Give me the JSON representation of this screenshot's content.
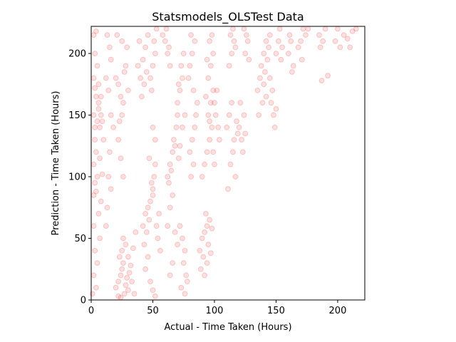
{
  "chart_data": {
    "type": "scatter",
    "title": "Statsmodels_OLSTest Data",
    "xlabel": "Actual - Time Taken (Hours)",
    "ylabel": "Prediction - Time Taken (Hours)",
    "xlim": [
      0,
      222
    ],
    "ylim": [
      0,
      222
    ],
    "xticks": [
      "0",
      "50",
      "100",
      "150",
      "200"
    ],
    "yticks": [
      "0",
      "50",
      "100",
      "150",
      "200"
    ],
    "grid": false,
    "marker": {
      "color": "#ff0000",
      "alpha": 0.12,
      "shape": "circle"
    },
    "series": [
      {
        "values_description_note": "",
        "points": [
          [
            2,
            180
          ],
          [
            3,
            172
          ],
          [
            4,
            165
          ],
          [
            2,
            150
          ],
          [
            5,
            145
          ],
          [
            3,
            140
          ],
          [
            6,
            155
          ],
          [
            4,
            120
          ],
          [
            2,
            110
          ],
          [
            3,
            95
          ],
          [
            4,
            88
          ],
          [
            2,
            85
          ],
          [
            5,
            100
          ],
          [
            3,
            130
          ],
          [
            6,
            160
          ],
          [
            8,
            150
          ],
          [
            7,
            140
          ],
          [
            5,
            190
          ],
          [
            3,
            200
          ],
          [
            2,
            60
          ],
          [
            3,
            40
          ],
          [
            2,
            20
          ],
          [
            4,
            10
          ],
          [
            1,
            5
          ],
          [
            6,
            175
          ],
          [
            8,
            165
          ],
          [
            9,
            145
          ],
          [
            10,
            130
          ],
          [
            7,
            115
          ],
          [
            9,
            102
          ],
          [
            8,
            80
          ],
          [
            6,
            70
          ],
          [
            5,
            30
          ],
          [
            7,
            50
          ],
          [
            2,
            215
          ],
          [
            4,
            218
          ],
          [
            12,
            180
          ],
          [
            14,
            170
          ],
          [
            16,
            150
          ],
          [
            18,
            140
          ],
          [
            15,
            120
          ],
          [
            14,
            100
          ],
          [
            16,
            90
          ],
          [
            13,
            75
          ],
          [
            12,
            60
          ],
          [
            15,
            205
          ],
          [
            16,
            195
          ],
          [
            13,
            215
          ],
          [
            20,
            10
          ],
          [
            22,
            15
          ],
          [
            24,
            20
          ],
          [
            25,
            25
          ],
          [
            27,
            5
          ],
          [
            28,
            12
          ],
          [
            26,
            30
          ],
          [
            23,
            35
          ],
          [
            25,
            40
          ],
          [
            22,
            3
          ],
          [
            30,
            8
          ],
          [
            29,
            18
          ],
          [
            31,
            22
          ],
          [
            24,
            2
          ],
          [
            26,
            50
          ],
          [
            28,
            45
          ],
          [
            30,
            35
          ],
          [
            32,
            28
          ],
          [
            33,
            15
          ],
          [
            35,
            5
          ],
          [
            34,
            42
          ],
          [
            36,
            55
          ],
          [
            20,
            180
          ],
          [
            22,
            175
          ],
          [
            24,
            165
          ],
          [
            26,
            160
          ],
          [
            25,
            150
          ],
          [
            23,
            145
          ],
          [
            27,
            185
          ],
          [
            28,
            190
          ],
          [
            21,
            215
          ],
          [
            25,
            210
          ],
          [
            29,
            205
          ],
          [
            30,
            170
          ],
          [
            22,
            130
          ],
          [
            24,
            115
          ],
          [
            26,
            100
          ],
          [
            40,
            180
          ],
          [
            42,
            195
          ],
          [
            44,
            205
          ],
          [
            46,
            215
          ],
          [
            41,
            165
          ],
          [
            38,
            190
          ],
          [
            43,
            175
          ],
          [
            45,
            185
          ],
          [
            39,
            210
          ],
          [
            42,
            60
          ],
          [
            44,
            70
          ],
          [
            46,
            75
          ],
          [
            48,
            80
          ],
          [
            50,
            85
          ],
          [
            47,
            65
          ],
          [
            45,
            55
          ],
          [
            43,
            45
          ],
          [
            49,
            95
          ],
          [
            51,
            100
          ],
          [
            52,
            110
          ],
          [
            50,
            90
          ],
          [
            46,
            35
          ],
          [
            44,
            25
          ],
          [
            48,
            15
          ],
          [
            50,
            8
          ],
          [
            52,
            3
          ],
          [
            53,
            60
          ],
          [
            55,
            70
          ],
          [
            54,
            50
          ],
          [
            56,
            40
          ],
          [
            47,
            115
          ],
          [
            48,
            180
          ],
          [
            50,
            190
          ],
          [
            52,
            200
          ],
          [
            49,
            170
          ],
          [
            51,
            210
          ],
          [
            53,
            220
          ],
          [
            50,
            140
          ],
          [
            52,
            130
          ],
          [
            60,
            210
          ],
          [
            62,
            200
          ],
          [
            64,
            190
          ],
          [
            58,
            215
          ],
          [
            63,
            205
          ],
          [
            61,
            220
          ],
          [
            62,
            100
          ],
          [
            64,
            110
          ],
          [
            66,
            120
          ],
          [
            68,
            125
          ],
          [
            65,
            105
          ],
          [
            63,
            95
          ],
          [
            67,
            130
          ],
          [
            69,
            140
          ],
          [
            70,
            150
          ],
          [
            71,
            115
          ],
          [
            72,
            125
          ],
          [
            66,
            85
          ],
          [
            64,
            75
          ],
          [
            62,
            60
          ],
          [
            68,
            55
          ],
          [
            70,
            45
          ],
          [
            66,
            30
          ],
          [
            64,
            20
          ],
          [
            70,
            160
          ],
          [
            72,
            170
          ],
          [
            74,
            180
          ],
          [
            73,
            190
          ],
          [
            75,
            200
          ],
          [
            71,
            175
          ],
          [
            76,
            150
          ],
          [
            74,
            140
          ],
          [
            72,
            60
          ],
          [
            74,
            50
          ],
          [
            76,
            40
          ],
          [
            75,
            30
          ],
          [
            77,
            20
          ],
          [
            73,
            10
          ],
          [
            78,
            15
          ],
          [
            76,
            5
          ],
          [
            80,
            190
          ],
          [
            82,
            200
          ],
          [
            84,
            210
          ],
          [
            81,
            215
          ],
          [
            79,
            180
          ],
          [
            83,
            170
          ],
          [
            80,
            120
          ],
          [
            82,
            130
          ],
          [
            84,
            140
          ],
          [
            83,
            110
          ],
          [
            81,
            100
          ],
          [
            85,
            150
          ],
          [
            86,
            160
          ],
          [
            88,
            40
          ],
          [
            90,
            50
          ],
          [
            92,
            55
          ],
          [
            94,
            60
          ],
          [
            96,
            65
          ],
          [
            93,
            70
          ],
          [
            95,
            45
          ],
          [
            97,
            38
          ],
          [
            91,
            35
          ],
          [
            89,
            25
          ],
          [
            92,
            20
          ],
          [
            94,
            30
          ],
          [
            98,
            58
          ],
          [
            90,
            100
          ],
          [
            92,
            110
          ],
          [
            94,
            120
          ],
          [
            96,
            130
          ],
          [
            98,
            140
          ],
          [
            95,
            150
          ],
          [
            97,
            160
          ],
          [
            93,
            165
          ],
          [
            99,
            170
          ],
          [
            96,
            145
          ],
          [
            95,
            180
          ],
          [
            97,
            190
          ],
          [
            99,
            200
          ],
          [
            96,
            210
          ],
          [
            98,
            215
          ],
          [
            94,
            195
          ],
          [
            100,
            160
          ],
          [
            102,
            170
          ],
          [
            101,
            150
          ],
          [
            103,
            140
          ],
          [
            104,
            130
          ],
          [
            99,
            120
          ],
          [
            100,
            110
          ],
          [
            110,
            140
          ],
          [
            112,
            150
          ],
          [
            114,
            160
          ],
          [
            116,
            130
          ],
          [
            115,
            120
          ],
          [
            113,
            110
          ],
          [
            117,
            100
          ],
          [
            111,
            90
          ],
          [
            118,
            145
          ],
          [
            119,
            135
          ],
          [
            112,
            190
          ],
          [
            114,
            200
          ],
          [
            116,
            210
          ],
          [
            113,
            215
          ],
          [
            115,
            220
          ],
          [
            117,
            205
          ],
          [
            120,
            140
          ],
          [
            122,
            130
          ],
          [
            124,
            150
          ],
          [
            121,
            160
          ],
          [
            123,
            120
          ],
          [
            125,
            135
          ],
          [
            125,
            200
          ],
          [
            127,
            210
          ],
          [
            126,
            215
          ],
          [
            128,
            195
          ],
          [
            124,
            220
          ],
          [
            135,
            170
          ],
          [
            137,
            180
          ],
          [
            139,
            160
          ],
          [
            136,
            150
          ],
          [
            138,
            190
          ],
          [
            140,
            175
          ],
          [
            141,
            185
          ],
          [
            142,
            165
          ],
          [
            140,
            200
          ],
          [
            142,
            210
          ],
          [
            144,
            205
          ],
          [
            143,
            195
          ],
          [
            145,
            215
          ],
          [
            145,
            180
          ],
          [
            147,
            170
          ],
          [
            146,
            160
          ],
          [
            148,
            150
          ],
          [
            150,
            155
          ],
          [
            149,
            140
          ],
          [
            150,
            200
          ],
          [
            152,
            210
          ],
          [
            154,
            195
          ],
          [
            153,
            220
          ],
          [
            155,
            205
          ],
          [
            160,
            200
          ],
          [
            162,
            210
          ],
          [
            164,
            190
          ],
          [
            161,
            215
          ],
          [
            163,
            185
          ],
          [
            170,
            210
          ],
          [
            172,
            220
          ],
          [
            168,
            205
          ],
          [
            171,
            195
          ],
          [
            174,
            215
          ],
          [
            176,
            220
          ],
          [
            185,
            215
          ],
          [
            188,
            210
          ],
          [
            190,
            220
          ],
          [
            186,
            205
          ],
          [
            187,
            178
          ],
          [
            192,
            182
          ],
          [
            198,
            210
          ],
          [
            200,
            220
          ],
          [
            202,
            205
          ],
          [
            205,
            215
          ],
          [
            208,
            212
          ],
          [
            212,
            218
          ],
          [
            215,
            220
          ],
          [
            210,
            205
          ]
        ]
      }
    ]
  }
}
